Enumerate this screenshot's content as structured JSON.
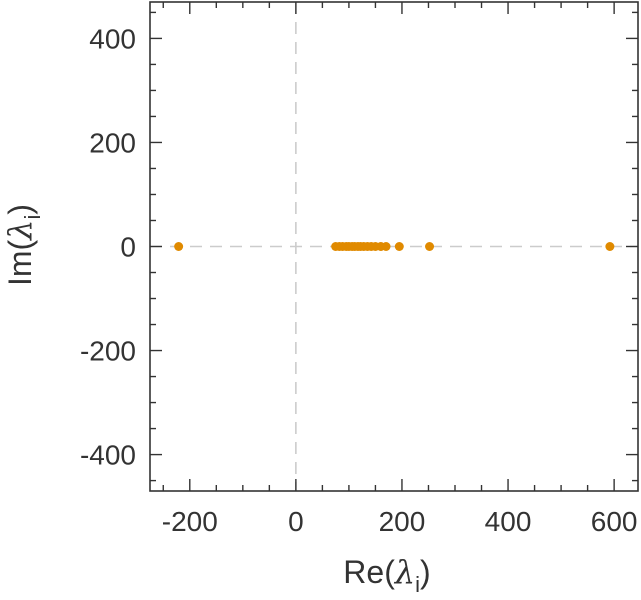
{
  "chart_data": {
    "type": "scatter",
    "title": "",
    "xlabel": {
      "prefix": "Re(",
      "symbol": "λ",
      "subscript": "i",
      "suffix": ")"
    },
    "ylabel": {
      "prefix": "Im(",
      "symbol": "λ",
      "subscript": "i",
      "suffix": ")"
    },
    "xlim": [
      -275,
      645
    ],
    "ylim": [
      -470,
      470
    ],
    "x_ticks_major": [
      -200,
      0,
      200,
      400,
      600
    ],
    "x_tick_labels": [
      "-200",
      "0",
      "200",
      "400",
      "600"
    ],
    "x_ticks_minor": [
      -250,
      -150,
      -100,
      -50,
      50,
      100,
      150,
      250,
      300,
      350,
      450,
      500,
      550
    ],
    "y_ticks_major": [
      -400,
      -200,
      0,
      200,
      400
    ],
    "y_tick_labels": [
      "-400",
      "-200",
      "0",
      "200",
      "400"
    ],
    "y_ticks_minor": [
      -450,
      -350,
      -300,
      -250,
      -150,
      -100,
      -50,
      50,
      100,
      150,
      250,
      300,
      350,
      450
    ],
    "grid": false,
    "reference_lines": {
      "x_zero": true,
      "y_zero": true
    },
    "colors": {
      "points": "#e08a00",
      "reference_lines": "#cccccc",
      "frame": "#333333"
    },
    "series": [
      {
        "points": [
          {
            "x": -221,
            "y": 0
          },
          {
            "x": 75,
            "y": 0
          },
          {
            "x": 82,
            "y": 0
          },
          {
            "x": 88,
            "y": 0
          },
          {
            "x": 95,
            "y": 0
          },
          {
            "x": 100,
            "y": 0
          },
          {
            "x": 106,
            "y": 0
          },
          {
            "x": 111,
            "y": 0
          },
          {
            "x": 117,
            "y": 0
          },
          {
            "x": 122,
            "y": 0
          },
          {
            "x": 128,
            "y": 0
          },
          {
            "x": 135,
            "y": 0
          },
          {
            "x": 142,
            "y": 0
          },
          {
            "x": 150,
            "y": 0
          },
          {
            "x": 160,
            "y": 0
          },
          {
            "x": 170,
            "y": 0
          },
          {
            "x": 195,
            "y": 0
          },
          {
            "x": 252,
            "y": 0
          },
          {
            "x": 592,
            "y": 0
          }
        ]
      }
    ]
  }
}
